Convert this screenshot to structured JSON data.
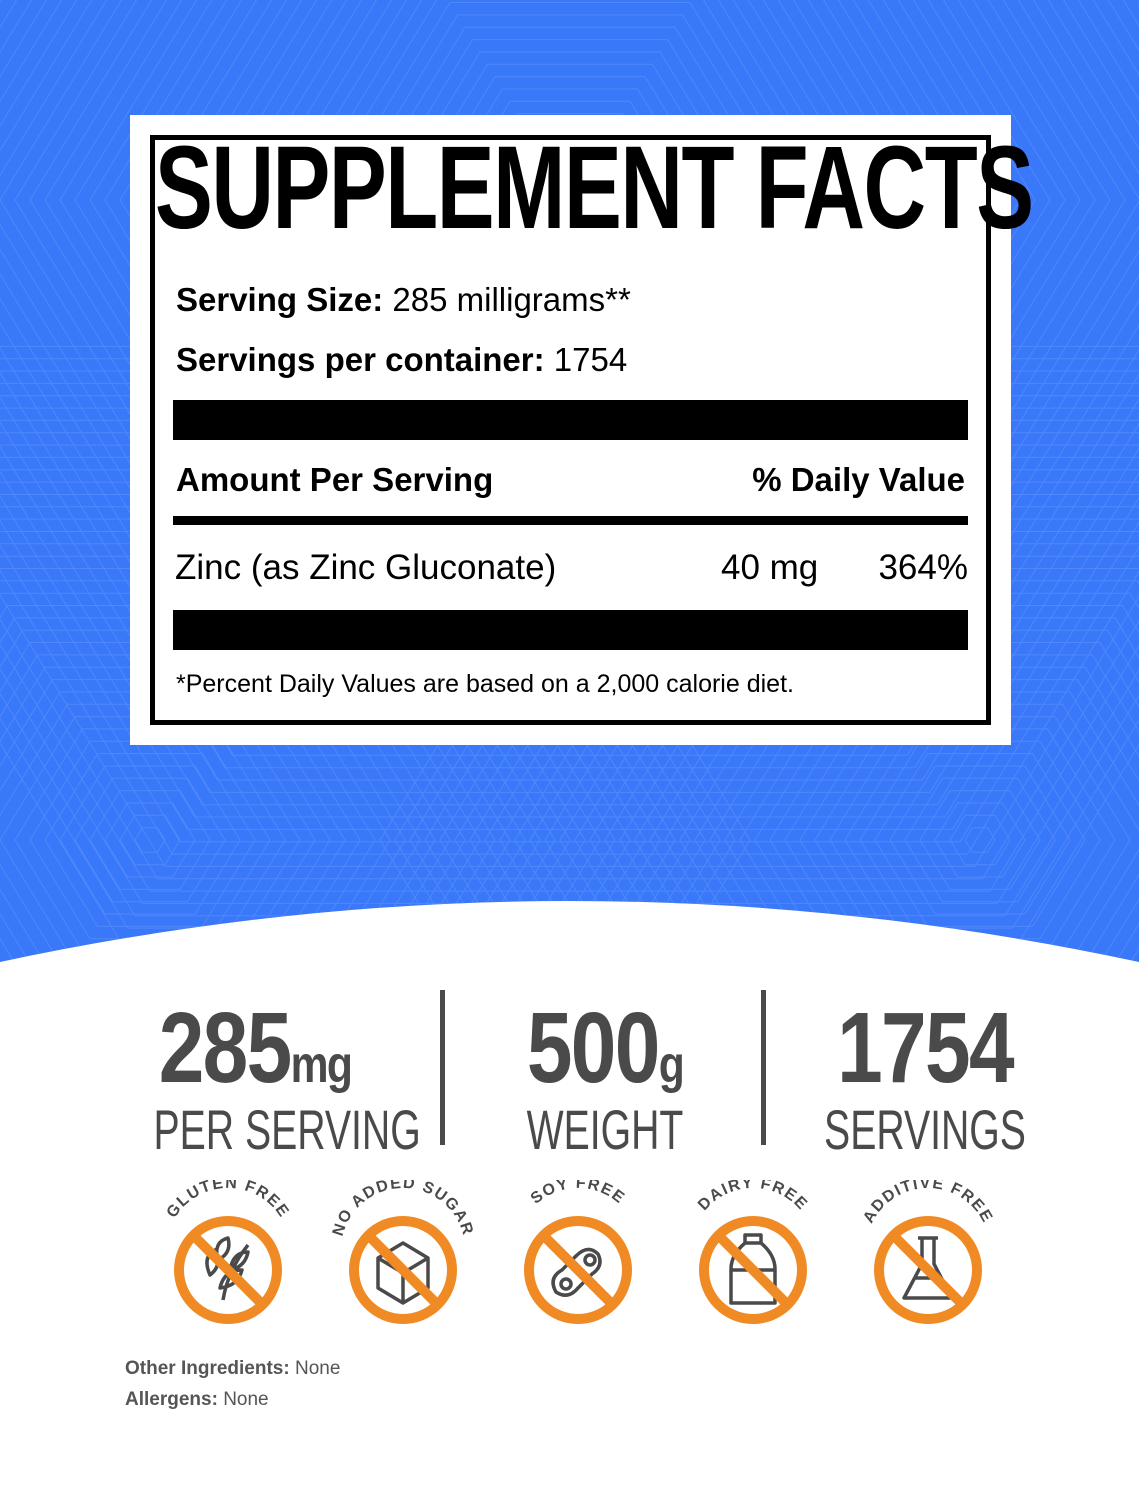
{
  "colors": {
    "background": "#3a78fa",
    "text_gray": "#4a4a4a",
    "icon_orange": "#f08a24"
  },
  "facts": {
    "title": "SUPPLEMENT FACTS",
    "serving_size_label": "Serving Size:",
    "serving_size_value": "285 milligrams**",
    "servings_label": "Servings per container:",
    "servings_value": "1754",
    "amount_header": "Amount Per Serving",
    "dv_header": "% Daily Value",
    "ingredients": [
      {
        "name": "Zinc (as Zinc Gluconate)",
        "amount": "40 mg",
        "dv": "364%"
      }
    ],
    "footnote": "*Percent Daily Values are based on a 2,000 calorie diet."
  },
  "stats": [
    {
      "value": "285",
      "unit": "mg",
      "label": "PER SERVING"
    },
    {
      "value": "500",
      "unit": "g",
      "label": "WEIGHT"
    },
    {
      "value": "1754",
      "unit": "",
      "label": "SERVINGS"
    }
  ],
  "badges": [
    {
      "label": "GLUTEN FREE",
      "icon": "wheat-icon"
    },
    {
      "label": "NO ADDED SUGAR",
      "icon": "sugar-cube-icon"
    },
    {
      "label": "SOY FREE",
      "icon": "soybean-icon"
    },
    {
      "label": "DAIRY FREE",
      "icon": "milk-bottle-icon"
    },
    {
      "label": "ADDITIVE FREE",
      "icon": "flask-icon"
    }
  ],
  "footer": {
    "other_label": "Other Ingredients:",
    "other_value": "None",
    "allergens_label": "Allergens:",
    "allergens_value": "None"
  }
}
